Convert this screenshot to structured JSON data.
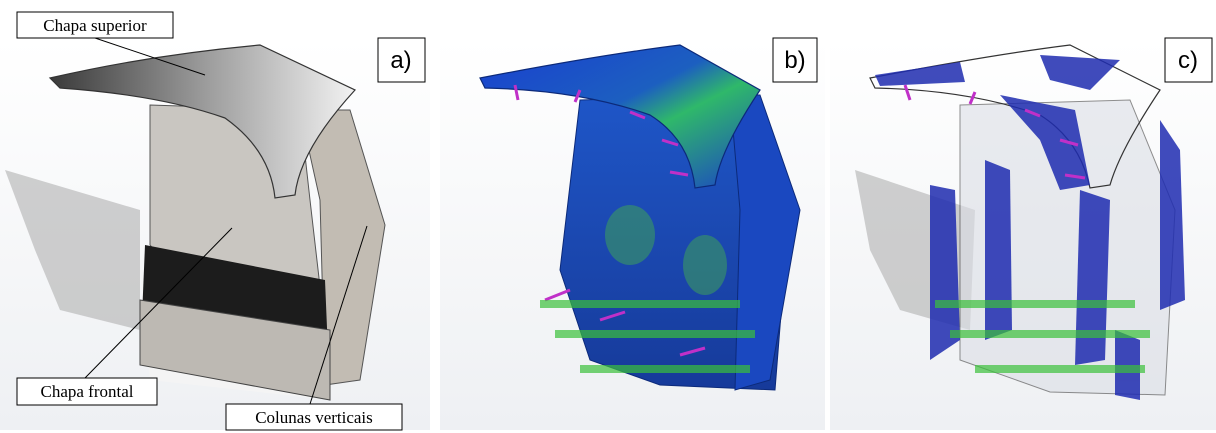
{
  "panels": [
    {
      "label": "a)"
    },
    {
      "label": "b)"
    },
    {
      "label": "c)"
    }
  ],
  "annotations": {
    "top_plate": "Chapa superior",
    "front_plate": "Chapa frontal",
    "columns": "Colunas verticais"
  }
}
